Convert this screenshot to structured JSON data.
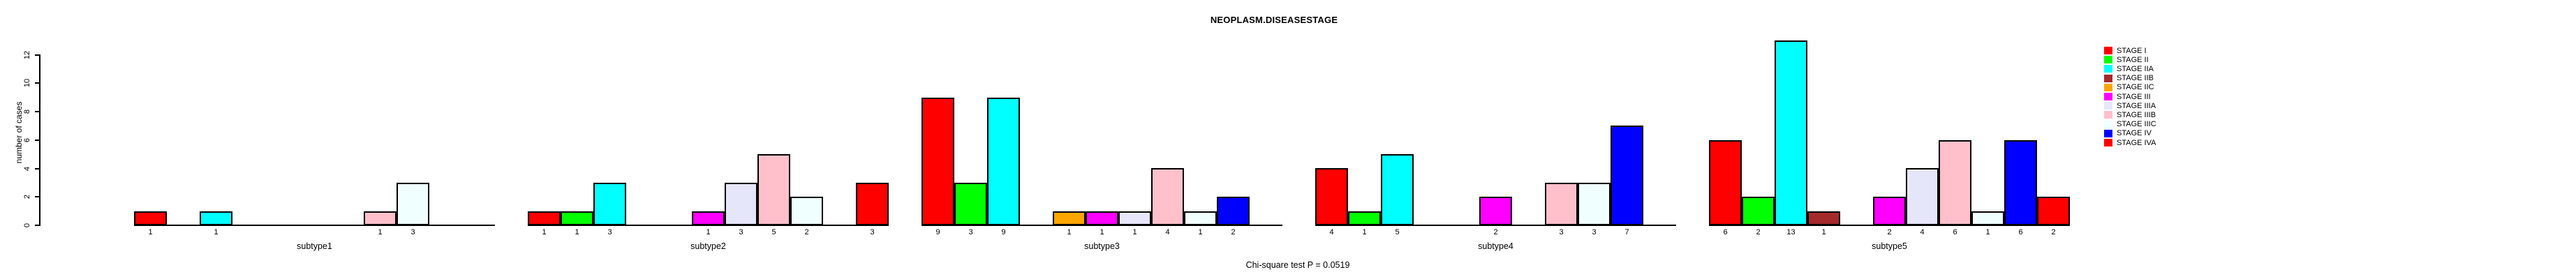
{
  "title": "NEOPLASM.DISEASESTAGE",
  "y_axis": {
    "label": "number of cases",
    "ticks": [
      0,
      2,
      4,
      6,
      8,
      10,
      12
    ]
  },
  "footer": "Chi-square test P = 0.0519",
  "legend": {
    "position": "right",
    "items": [
      {
        "label": "STAGE I",
        "color": "#FF0000"
      },
      {
        "label": "STAGE II",
        "color": "#00FF00"
      },
      {
        "label": "STAGE IIA",
        "color": "#00FFFF"
      },
      {
        "label": "STAGE IIB",
        "color": "#A52A2A"
      },
      {
        "label": "STAGE IIC",
        "color": "#FFA500"
      },
      {
        "label": "STAGE III",
        "color": "#FF00FF"
      },
      {
        "label": "STAGE IIIA",
        "color": "#E6E6FA"
      },
      {
        "label": "STAGE IIIB",
        "color": "#FFC0CB"
      },
      {
        "label": "STAGE IIIC",
        "color": "#F0FFFF"
      },
      {
        "label": "STAGE IV",
        "color": "#0000FF"
      },
      {
        "label": "STAGE IVA",
        "color": "#FF0000"
      }
    ]
  },
  "chart_data": {
    "type": "bar",
    "title": "NEOPLASM.DISEASESTAGE",
    "xlabel": "",
    "ylabel": "number of cases",
    "ylim": [
      0,
      12
    ],
    "yticks": [
      0,
      2,
      4,
      6,
      8,
      10,
      12
    ],
    "grid": false,
    "legend_position": "right",
    "annotation": "Chi-square test P = 0.0519",
    "categories": [
      "subtype1",
      "subtype2",
      "subtype3",
      "subtype4",
      "subtype5"
    ],
    "series": [
      {
        "name": "STAGE I",
        "color": "#FF0000",
        "values": [
          1,
          1,
          9,
          4,
          6
        ]
      },
      {
        "name": "STAGE II",
        "color": "#00FF00",
        "values": [
          0,
          1,
          3,
          1,
          2
        ]
      },
      {
        "name": "STAGE IIA",
        "color": "#00FFFF",
        "values": [
          1,
          3,
          9,
          5,
          13
        ]
      },
      {
        "name": "STAGE IIB",
        "color": "#A52A2A",
        "values": [
          0,
          0,
          0,
          0,
          1
        ]
      },
      {
        "name": "STAGE IIC",
        "color": "#FFA500",
        "values": [
          0,
          0,
          1,
          0,
          0
        ]
      },
      {
        "name": "STAGE III",
        "color": "#FF00FF",
        "values": [
          0,
          1,
          1,
          2,
          2
        ]
      },
      {
        "name": "STAGE IIIA",
        "color": "#E6E6FA",
        "values": [
          0,
          3,
          1,
          0,
          4
        ]
      },
      {
        "name": "STAGE IIIB",
        "color": "#FFC0CB",
        "values": [
          1,
          5,
          4,
          3,
          6
        ]
      },
      {
        "name": "STAGE IIIC",
        "color": "#F0FFFF",
        "values": [
          3,
          2,
          1,
          3,
          1
        ]
      },
      {
        "name": "STAGE IV",
        "color": "#0000FF",
        "values": [
          0,
          0,
          2,
          7,
          6
        ]
      },
      {
        "name": "STAGE IVA",
        "color": "#FF0000",
        "values": [
          0,
          3,
          0,
          0,
          2
        ]
      }
    ],
    "note": "zero values are drawn as empty slots with no bar and no value label"
  }
}
